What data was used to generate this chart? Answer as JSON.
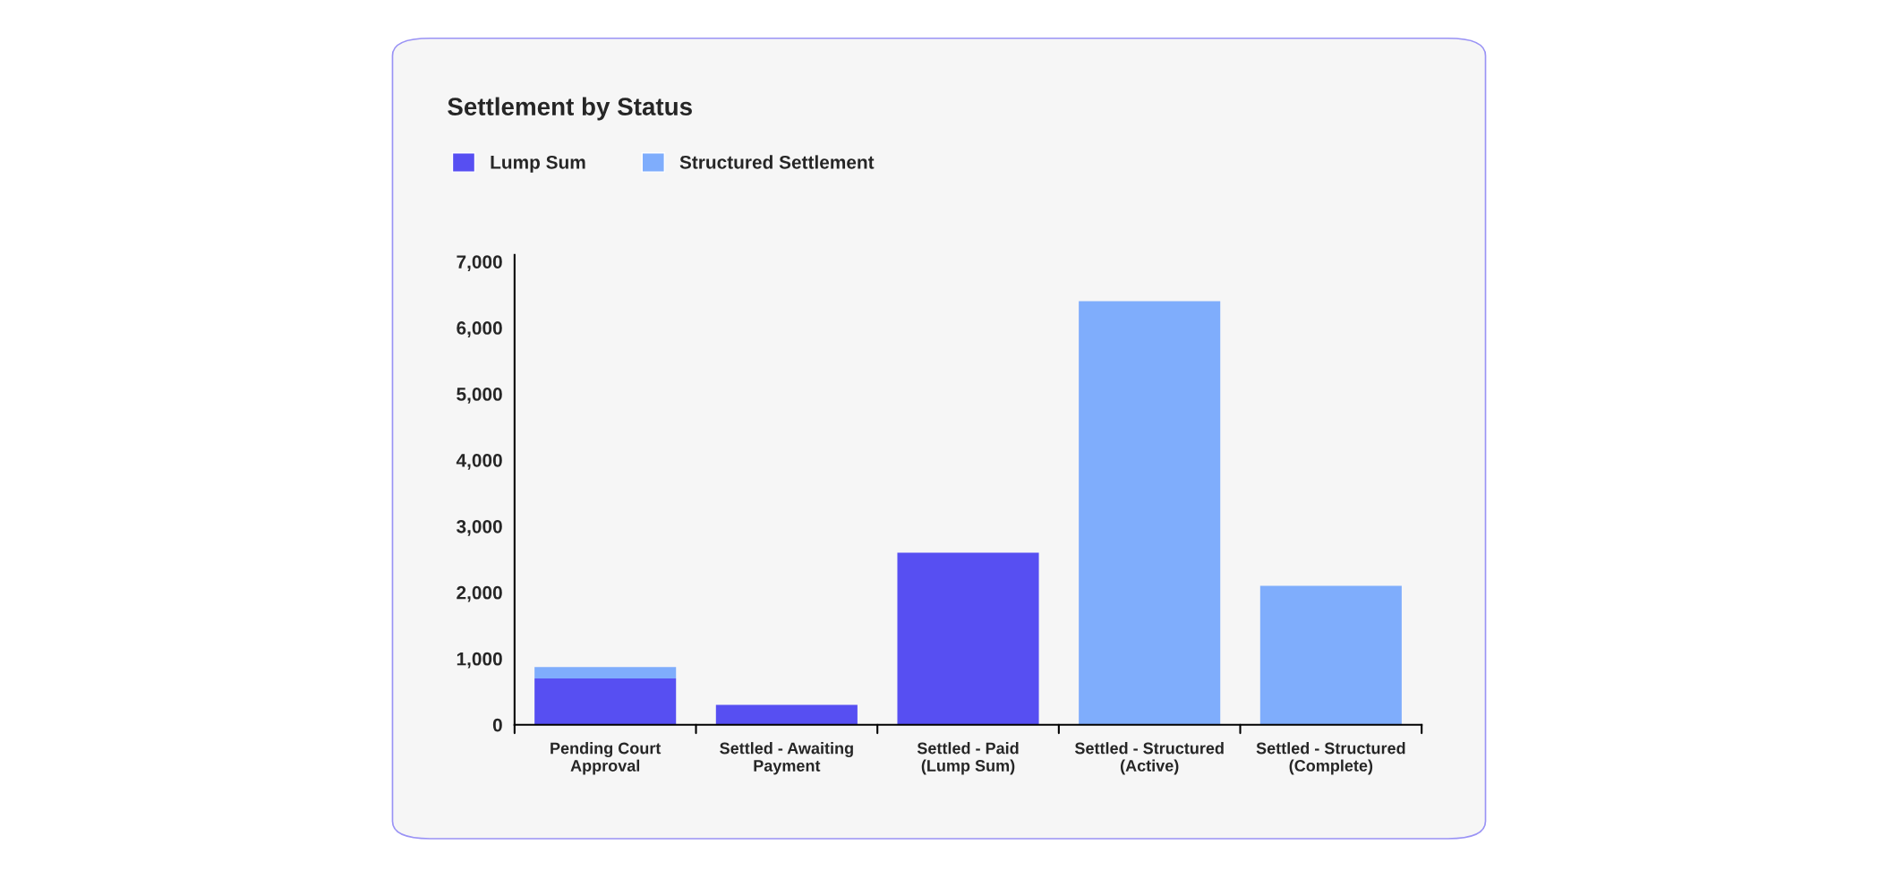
{
  "chart_data": {
    "type": "bar",
    "title": "Settlement by Status",
    "categories": [
      "Pending Court\nApproval",
      "Settled - Awaiting\nPayment",
      "Settled - Paid\n(Lump Sum)",
      "Settled - Structured\n(Active)",
      "Settled - Structured\n(Complete)"
    ],
    "series": [
      {
        "name": "Lump Sum",
        "color": "#574ff2",
        "values": [
          700,
          300,
          2600,
          0,
          0
        ]
      },
      {
        "name": "Structured Settlement",
        "color": "#7fadfc",
        "values": [
          170,
          0,
          0,
          6400,
          2100
        ]
      }
    ],
    "stacked": true,
    "ylim": [
      0,
      7100
    ],
    "yticks": [
      {
        "value": 0,
        "label": "0"
      },
      {
        "value": 1000,
        "label": "1,000"
      },
      {
        "value": 2000,
        "label": "2,000"
      },
      {
        "value": 3000,
        "label": "3,000"
      },
      {
        "value": 4000,
        "label": "4,000"
      },
      {
        "value": 5000,
        "label": "5,000"
      },
      {
        "value": 6000,
        "label": "6,000"
      },
      {
        "value": 7000,
        "label": "7,000"
      }
    ],
    "grid": false,
    "legend": "top left"
  }
}
